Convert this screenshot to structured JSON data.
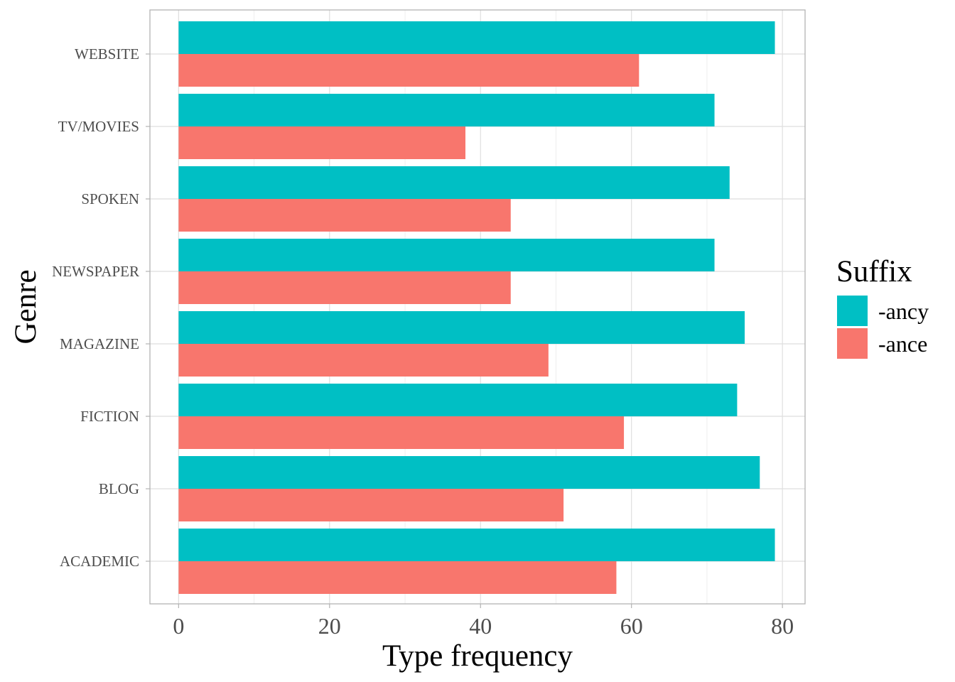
{
  "chart_data": {
    "type": "bar",
    "orientation": "horizontal",
    "xlabel": "Type frequency",
    "ylabel": "Genre",
    "xlim": [
      -3.8,
      83
    ],
    "xticks": [
      0,
      20,
      40,
      60,
      80
    ],
    "categories": [
      "ACADEMIC",
      "BLOG",
      "FICTION",
      "MAGAZINE",
      "NEWSPAPER",
      "SPOKEN",
      "TV/MOVIES",
      "WEBSITE"
    ],
    "series": [
      {
        "name": "-ancy",
        "color": "#00BFC4",
        "values": [
          79,
          77,
          74,
          75,
          71,
          73,
          71,
          79
        ]
      },
      {
        "name": "-ance",
        "color": "#F8766D",
        "values": [
          58,
          51,
          59,
          49,
          44,
          44,
          38,
          61
        ]
      }
    ],
    "legend": {
      "title": "Suffix",
      "position": "right"
    },
    "grid": true
  }
}
